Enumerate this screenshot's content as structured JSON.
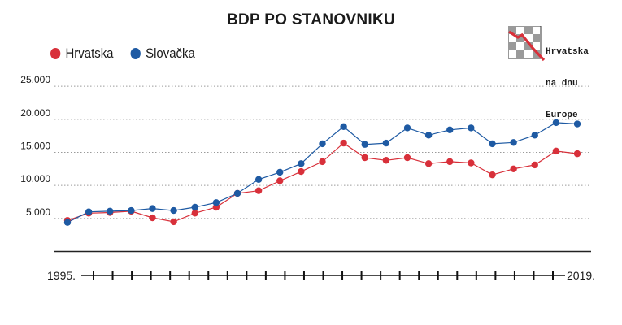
{
  "chart_data": {
    "type": "line",
    "title": "BDP PO STANOVNIKU",
    "xlabel": "",
    "ylabel": "",
    "x": [
      1995,
      1996,
      1997,
      1998,
      1999,
      2000,
      2001,
      2002,
      2003,
      2004,
      2005,
      2006,
      2007,
      2008,
      2009,
      2010,
      2011,
      2012,
      2013,
      2014,
      2015,
      2016,
      2017,
      2018,
      2019
    ],
    "x_start_label": "1995.",
    "x_end_label": "2019.",
    "ylim": [
      0,
      25000
    ],
    "yticks": [
      5000,
      10000,
      15000,
      20000,
      25000
    ],
    "ytick_labels": [
      "5.000",
      "10.000",
      "15.000",
      "20.000",
      "25.000"
    ],
    "grid": "horizontal-dotted",
    "legend_position": "top-left",
    "series": [
      {
        "name": "Hrvatska",
        "color": "#d8303a",
        "values": [
          4700,
          5800,
          5900,
          6100,
          5100,
          4500,
          5800,
          6700,
          8800,
          9200,
          10700,
          12100,
          13600,
          16400,
          14200,
          13800,
          14200,
          13300,
          13600,
          13400,
          11600,
          12500,
          13100,
          15200,
          14800
        ]
      },
      {
        "name": "Slovačka",
        "color": "#1e5aa3",
        "values": [
          4400,
          6000,
          6100,
          6200,
          6500,
          6200,
          6700,
          7400,
          8800,
          10900,
          12000,
          13300,
          16300,
          18900,
          16200,
          16400,
          18700,
          17600,
          18400,
          18700,
          16300,
          16500,
          17600,
          19500,
          19300
        ]
      }
    ]
  },
  "logo": {
    "lines": [
      "Hrvatska",
      "na dnu",
      "Europe"
    ],
    "accent_color": "#d8303a"
  }
}
